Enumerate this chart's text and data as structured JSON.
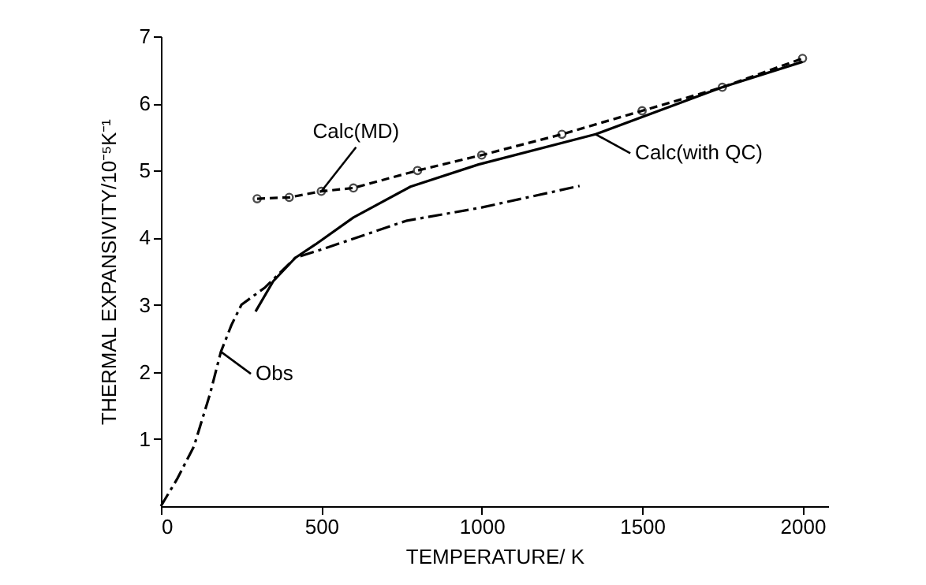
{
  "chart_data": {
    "type": "line",
    "xlabel": "TEMPERATURE/ K",
    "ylabel": "THERMAL EXPANSIVITY/10⁻⁵K⁻¹",
    "xlim": [
      0,
      2080
    ],
    "ylim": [
      0,
      7
    ],
    "xticks": [
      0,
      500,
      1000,
      1500,
      2000
    ],
    "yticks": [
      1,
      2,
      3,
      4,
      5,
      6,
      7
    ],
    "grid": false,
    "series": [
      {
        "color": "#000000",
        "line_style": "dashed",
        "marker": "circle",
        "x": [
          300,
          400,
          500,
          600,
          800,
          1000,
          1250,
          1500,
          1750,
          2000
        ],
        "values": [
          4.58,
          4.6,
          4.69,
          4.74,
          5.0,
          5.23,
          5.54,
          5.89,
          6.24,
          6.67
        ]
      },
      {
        "color": "#000000",
        "line_style": "solid",
        "marker": "none",
        "x": [
          295,
          350,
          419,
          482,
          600,
          778,
          990,
          1355,
          1749,
          2000
        ],
        "values": [
          2.9,
          3.35,
          3.7,
          3.9,
          4.3,
          4.76,
          5.09,
          5.54,
          6.24,
          6.62
        ]
      },
      {
        "color": "#000000",
        "line_style": "dashdot",
        "marker": "none",
        "x": [
          0,
          50,
          103,
          153,
          187,
          220,
          251,
          325,
          419,
          517,
          764,
          1000,
          1305
        ],
        "values": [
          0,
          0.4,
          0.89,
          1.67,
          2.3,
          2.7,
          3.0,
          3.26,
          3.7,
          3.85,
          4.25,
          4.45,
          4.77
        ]
      }
    ],
    "annotations": [
      {
        "text": "Calc(MD)",
        "x": 500,
        "y": 4.69
      },
      {
        "text": "Calc(with QC)",
        "x": 1355,
        "y": 5.54
      },
      {
        "text": "Obs",
        "x": 187,
        "y": 2.3
      }
    ]
  }
}
